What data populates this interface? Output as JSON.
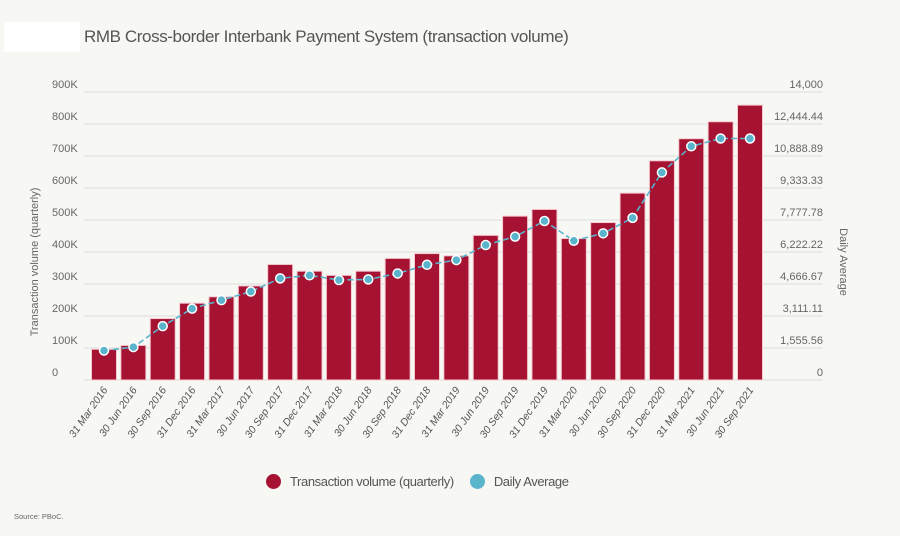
{
  "chart_data": {
    "type": "bar+line",
    "title": "RMB Cross-border Interbank Payment System (transaction volume)",
    "categories": [
      "31 Mar 2016",
      "30 Jun 2016",
      "30 Sep 2016",
      "31 Dec 2016",
      "31 Mar 2017",
      "30 Jun 2017",
      "30 Sep 2017",
      "31 Dec 2017",
      "31 Mar 2018",
      "30 Jun 2018",
      "30 Sep 2018",
      "31 Dec 2018",
      "31 Mar 2019",
      "30 Jun 2019",
      "30 Sep 2019",
      "31 Dec 2019",
      "31 Mar 2020",
      "30 Jun 2020",
      "30 Sep 2020",
      "31 Dec 2020",
      "31 Mar 2021",
      "30 Jun 2021",
      "30 Sep 2021"
    ],
    "series": [
      {
        "name": "Transaction volume (quarterly)",
        "type": "bar",
        "axis": "left",
        "color": "#a51232",
        "values": [
          96000,
          108000,
          192000,
          240000,
          260000,
          294000,
          361000,
          340000,
          327000,
          340000,
          380000,
          395000,
          388000,
          452000,
          512000,
          533000,
          442000,
          492000,
          584000,
          685000,
          754000,
          807000,
          859000
        ]
      },
      {
        "name": "Daily Average",
        "type": "line",
        "axis": "right",
        "color": "#5ab4cc",
        "values": [
          1430,
          1600,
          2620,
          3470,
          3880,
          4300,
          4940,
          5090,
          4860,
          4890,
          5180,
          5600,
          5830,
          6560,
          6970,
          7730,
          6770,
          7130,
          7880,
          10090,
          11360,
          11740,
          11740
        ]
      }
    ],
    "ylabel_left": "Transaction volume (quarterly)",
    "ylabel_right": "Daily Average",
    "ylim_left": [
      0,
      900000
    ],
    "ylim_right": [
      0,
      14000
    ],
    "yticks_left": [
      "0",
      "100K",
      "200K",
      "300K",
      "400K",
      "500K",
      "600K",
      "700K",
      "800K",
      "900K"
    ],
    "yticks_right": [
      "0",
      "1,555.56",
      "3,111.11",
      "4,666.67",
      "6,222.22",
      "7,777.78",
      "9,333.33",
      "10,888.89",
      "12,444.44",
      "14,000"
    ],
    "grid": true,
    "legend_position": "bottom",
    "source": "Source: PBoC."
  }
}
